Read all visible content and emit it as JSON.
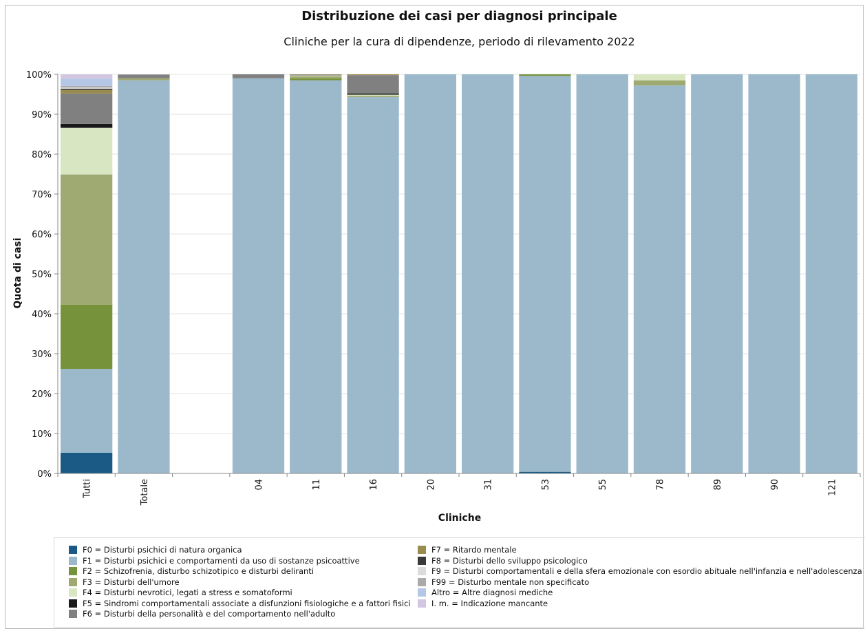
{
  "chart_data": {
    "type": "bar",
    "stacked": true,
    "title": "Distribuzione dei casi per diagnosi principale",
    "subtitle": "Cliniche per la cura di dipendenze, periodo di rilevamento 2022",
    "xlabel": "Cliniche",
    "ylabel": "Quota di casi",
    "ylim": [
      0,
      100
    ],
    "ytick_labels": [
      "0%",
      "10%",
      "20%",
      "30%",
      "40%",
      "50%",
      "60%",
      "70%",
      "80%",
      "90%",
      "100%"
    ],
    "grid": true,
    "legend_position": "bottom",
    "categories": [
      "Tutti",
      "Totale",
      "",
      "04",
      "11",
      "16",
      "20",
      "31",
      "53",
      "55",
      "78",
      "89",
      "90",
      "121"
    ],
    "series": [
      {
        "name": "F0 = Disturbi psichici di natura organica",
        "color": "#1b5a85",
        "values": [
          5.2,
          0,
          0,
          0,
          0,
          0,
          0,
          0,
          0.4,
          0,
          0,
          0,
          0,
          0
        ]
      },
      {
        "name": "F1 = Disturbi psichici e comportamenti da uso di sostanze psicoattive",
        "color": "#9bb9cb",
        "values": [
          21.0,
          98.5,
          0,
          99.0,
          98.5,
          94.3,
          100,
          100,
          99.2,
          100,
          97.2,
          100,
          100,
          100
        ]
      },
      {
        "name": "F2 = Schizofrenia, disturbo schizotipico e disturbi deliranti",
        "color": "#76923a",
        "values": [
          16.1,
          0,
          0,
          0,
          0.5,
          0,
          0,
          0,
          0.4,
          0,
          0,
          0,
          0,
          0
        ]
      },
      {
        "name": "F3 = Disturbi dell'umore",
        "color": "#9eaa71",
        "values": [
          32.6,
          0.5,
          0,
          0,
          0.5,
          0.3,
          0,
          0,
          0,
          0,
          1.3,
          0,
          0,
          0
        ]
      },
      {
        "name": "F4 = Disturbi nevrotici, legati a stress e somatoformi",
        "color": "#d9e6c2",
        "values": [
          11.7,
          0,
          0,
          0,
          0.2,
          0.3,
          0,
          0,
          0,
          0,
          1.5,
          0,
          0,
          0
        ]
      },
      {
        "name": "F5 = Sindromi comportamentali associate a disfunzioni fisiologiche e a fattori fisici",
        "color": "#1a1a1a",
        "values": [
          1.0,
          0,
          0,
          0,
          0,
          0.3,
          0,
          0,
          0,
          0,
          0,
          0,
          0,
          0
        ]
      },
      {
        "name": "F6 = Disturbi della personalità e del comportamento nell'adulto",
        "color": "#808080",
        "values": [
          7.6,
          0.9,
          0,
          1.0,
          0.2,
          4.6,
          0,
          0,
          0,
          0,
          0,
          0,
          0,
          0
        ]
      },
      {
        "name": "F7 = Ritardo mentale",
        "color": "#9a8c4e",
        "values": [
          0.9,
          0,
          0,
          0,
          0.1,
          0.2,
          0,
          0,
          0,
          0,
          0,
          0,
          0,
          0
        ]
      },
      {
        "name": "F8 = Disturbi dello sviluppo psicologico",
        "color": "#3a3a3a",
        "values": [
          0.3,
          0,
          0,
          0,
          0,
          0,
          0,
          0,
          0,
          0,
          0,
          0,
          0,
          0
        ]
      },
      {
        "name": "F9 = Disturbi comportamentali e della sfera emozionale con esordio abituale nell'infanzia e nell'adolescenza",
        "color": "#dcdcdc",
        "values": [
          0.3,
          0,
          0,
          0,
          0,
          0,
          0,
          0,
          0,
          0,
          0,
          0,
          0,
          0
        ]
      },
      {
        "name": "F99 = Disturbo mentale non specificato",
        "color": "#aaaaaa",
        "values": [
          0.4,
          0.1,
          0,
          0,
          0,
          0,
          0,
          0,
          0,
          0,
          0,
          0,
          0,
          0
        ]
      },
      {
        "name": "Altro = Altre diagnosi mediche",
        "color": "#b4c7e7",
        "values": [
          1.8,
          0,
          0,
          0,
          0,
          0,
          0,
          0,
          0,
          0,
          0,
          0,
          0,
          0
        ]
      },
      {
        "name": "I. m. = Indicazione mancante",
        "color": "#d3c6e0",
        "values": [
          1.1,
          0,
          0,
          0,
          0,
          0,
          0,
          0,
          0,
          0,
          0,
          0,
          0,
          0
        ]
      }
    ]
  }
}
